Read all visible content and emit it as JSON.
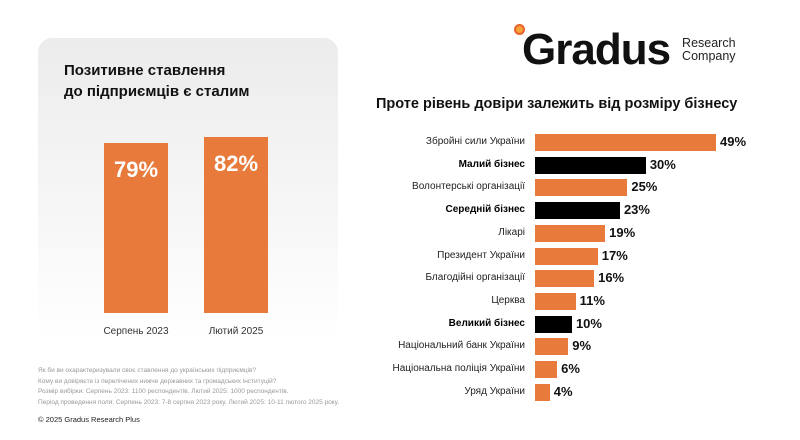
{
  "colors": {
    "orange": "#e87a3b",
    "black": "#000000"
  },
  "logo": {
    "name": "Gradus",
    "sub1": "Research",
    "sub2": "Company"
  },
  "left": {
    "title_line1": "Позитивне ставлення",
    "title_line2": "до підприємців є сталим"
  },
  "right": {
    "title": "Проте рівень довіри залежить від розміру бізнесу"
  },
  "chart_data": [
    {
      "type": "bar",
      "title": "Позитивне ставлення до підприємців є сталим",
      "categories": [
        "Серпень 2023",
        "Лютий 2025"
      ],
      "values": [
        79,
        82
      ],
      "labels": [
        "79%",
        "82%"
      ],
      "ylim": [
        0,
        100
      ]
    },
    {
      "type": "bar",
      "orientation": "horizontal",
      "title": "Проте рівень довіри залежить від розміру бізнесу",
      "categories": [
        "Збройні сили України",
        "Малий бізнес",
        "Волонтерські організації",
        "Середній бізнес",
        "Лікарі",
        "Президент України",
        "Благодійні організації",
        "Церква",
        "Великий бізнес",
        "Національний банк України",
        "Національна поліція України",
        "Уряд України"
      ],
      "values": [
        49,
        30,
        25,
        23,
        19,
        17,
        16,
        11,
        10,
        9,
        6,
        4
      ],
      "labels": [
        "49%",
        "30%",
        "25%",
        "23%",
        "19%",
        "17%",
        "16%",
        "11%",
        "10%",
        "9%",
        "6%",
        "4%"
      ],
      "highlight": [
        false,
        true,
        false,
        true,
        false,
        false,
        false,
        false,
        true,
        false,
        false,
        false
      ],
      "xlim": [
        0,
        50
      ]
    }
  ],
  "notes": [
    "Як би ви охарактеризували своє ставлення до українських підприємців?",
    "Кому ви довіряєте із перелічених нижче державних та громадських інституцій?",
    "Розмір вибірки: Серпень 2023: 1100 респондентів. Лютий 2025: 1000 респондентів.",
    "Період проведення поля:  Серпень 2023: 7-8 серпня 2023 року. Лютий 2025: 10-11 лютого 2025 року."
  ],
  "copyright": "© 2025 Gradus Research Plus"
}
